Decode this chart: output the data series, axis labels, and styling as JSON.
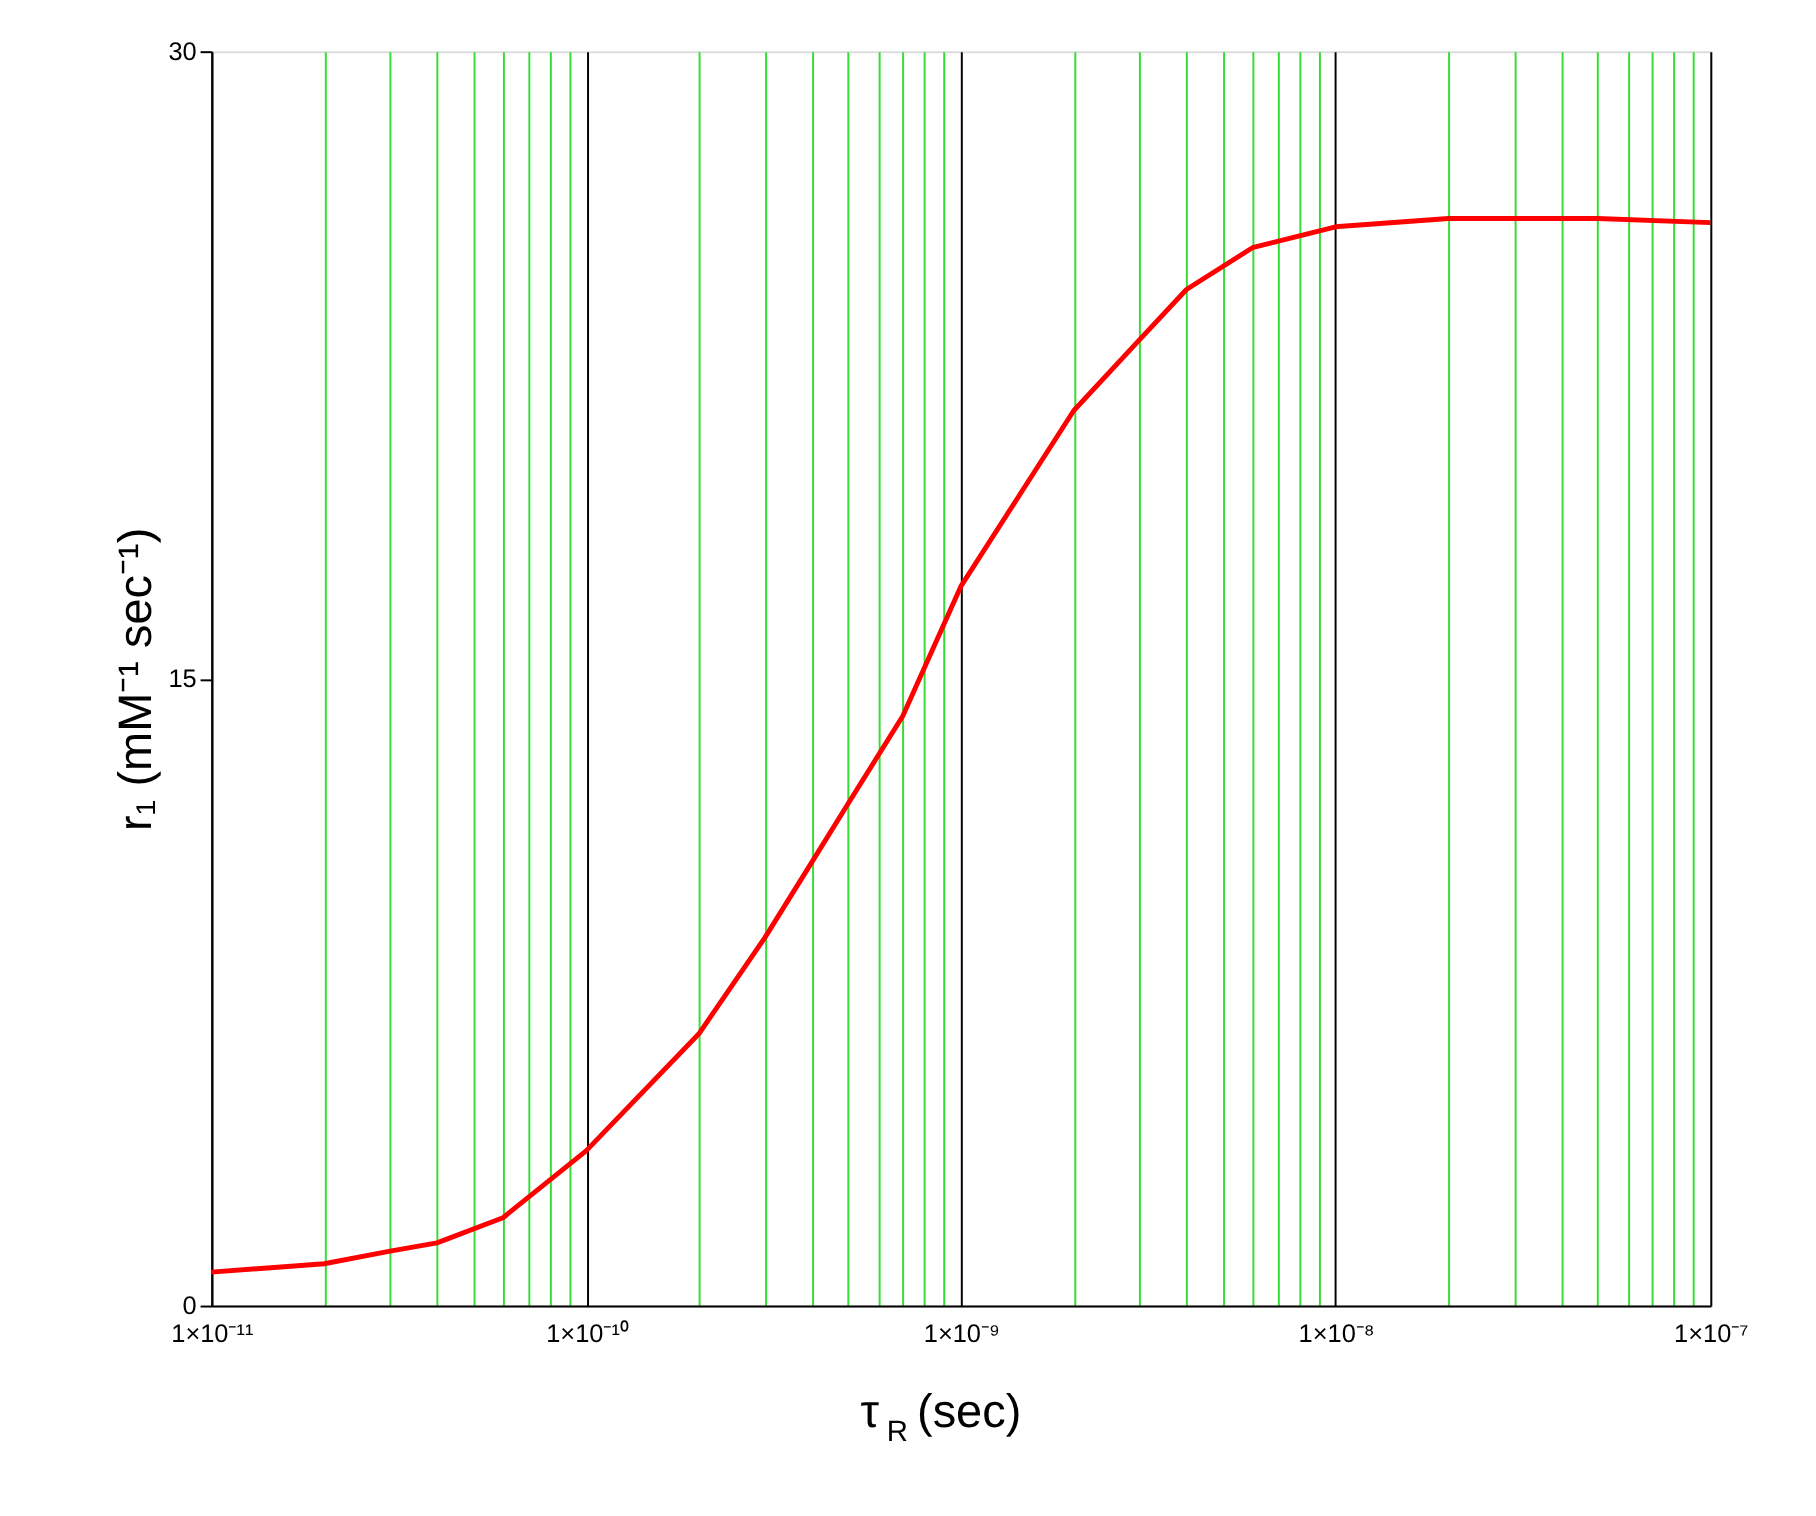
{
  "chart_data": {
    "type": "line",
    "xlabel": "τ$_{R}$ (sec)",
    "ylabel": "r₁ (mM⁻¹ sec⁻¹)",
    "log": "x",
    "grid": "x",
    "marker": "none",
    "line_style": "solid",
    "x": [
      1e-11,
      2e-11,
      3e-11,
      4e-11,
      6e-11,
      1e-10,
      2e-10,
      3e-10,
      4e-10,
      5e-10,
      7e-10,
      1e-09,
      2e-09,
      3e-09,
      4e-09,
      6e-09,
      1e-08,
      2e-08,
      5e-08,
      1e-07
    ],
    "series": [
      {
        "color": "#ff0000",
        "values": [
          0.8,
          1.0,
          1.3,
          1.5,
          2.1,
          3.7,
          6.5,
          8.8,
          10.6,
          12.0,
          14.1,
          17.2,
          21.4,
          23.1,
          24.3,
          25.3,
          25.8,
          26.0,
          26.0,
          25.9
        ]
      }
    ],
    "xlim": [
      1e-11,
      1e-07
    ],
    "xticks": [
      {
        "value": 1e-11,
        "label": "1×10⁻¹¹"
      },
      {
        "value": 2e-11,
        "label": null
      },
      {
        "value": 3e-11,
        "label": null
      },
      {
        "value": 4e-11,
        "label": null
      },
      {
        "value": 5e-11,
        "label": null
      },
      {
        "value": 6e-11,
        "label": null
      },
      {
        "value": 7e-11,
        "label": null
      },
      {
        "value": 8e-11,
        "label": null
      },
      {
        "value": 9e-11,
        "label": null
      },
      {
        "value": 1e-10,
        "label": "1×10⁻¹⁰"
      },
      {
        "value": 2e-10,
        "label": null
      },
      {
        "value": 3e-10,
        "label": null
      },
      {
        "value": 4e-10,
        "label": null
      },
      {
        "value": 5e-10,
        "label": null
      },
      {
        "value": 6e-10,
        "label": null
      },
      {
        "value": 7e-10,
        "label": null
      },
      {
        "value": 8e-10,
        "label": null
      },
      {
        "value": 9e-10,
        "label": null
      },
      {
        "value": 1e-09,
        "label": "1×10⁻⁹"
      },
      {
        "value": 2e-09,
        "label": null
      },
      {
        "value": 3e-09,
        "label": null
      },
      {
        "value": 4e-09,
        "label": null
      },
      {
        "value": 5e-09,
        "label": null
      },
      {
        "value": 6e-09,
        "label": null
      },
      {
        "value": 7e-09,
        "label": null
      },
      {
        "value": 8e-09,
        "label": null
      },
      {
        "value": 9e-09,
        "label": null
      },
      {
        "value": 1e-08,
        "label": "1×10⁻⁸"
      },
      {
        "value": 2e-08,
        "label": null
      },
      {
        "value": 3e-08,
        "label": null
      },
      {
        "value": 4e-08,
        "label": null
      },
      {
        "value": 5e-08,
        "label": null
      },
      {
        "value": 6e-08,
        "label": null
      },
      {
        "value": 7e-08,
        "label": null
      },
      {
        "value": 8e-08,
        "label": null
      },
      {
        "value": 9e-08,
        "label": null
      },
      {
        "value": 1e-07,
        "label": "1×10⁻⁷"
      }
    ],
    "ylim": [
      0,
      30
    ],
    "yticks": [
      0,
      15,
      30
    ]
  }
}
